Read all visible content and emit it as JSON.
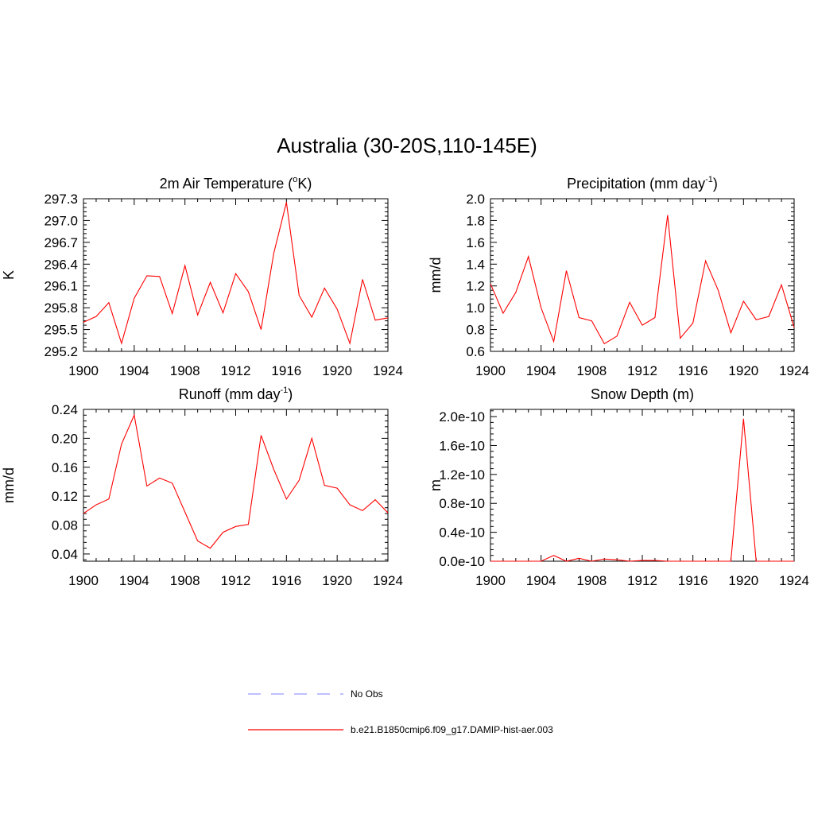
{
  "title": "Australia (30-20S,110-145E)",
  "legend": [
    {
      "label": "No Obs",
      "color": "#9999ff",
      "style": "dashed"
    },
    {
      "label": "b.e21.B1850cmip6.f09_g17.DAMIP-hist-aer.003",
      "color": "#ff0000",
      "style": "solid"
    }
  ],
  "chart_data": [
    {
      "type": "line",
      "title": "2m Air Temperature (",
      "title_sup": "o",
      "title_suffix": "K)",
      "ylabel": "K",
      "xlim": [
        1900,
        1924
      ],
      "ylim": [
        295.2,
        297.3
      ],
      "xticks": [
        "1900",
        "1904",
        "1908",
        "1912",
        "1916",
        "1920",
        "1924"
      ],
      "yticks": [
        "295.2",
        "295.5",
        "295.8",
        "296.1",
        "296.4",
        "296.7",
        "297.0",
        "297.3"
      ],
      "color": "#ff0000",
      "x": [
        1900,
        1901,
        1902,
        1903,
        1904,
        1905,
        1906,
        1907,
        1908,
        1909,
        1910,
        1911,
        1912,
        1913,
        1914,
        1915,
        1916,
        1917,
        1918,
        1919,
        1920,
        1921,
        1922,
        1923,
        1924
      ],
      "y": [
        295.6,
        295.68,
        295.87,
        295.31,
        295.93,
        296.24,
        296.23,
        295.72,
        296.38,
        295.7,
        296.15,
        295.73,
        296.27,
        296.02,
        295.5,
        296.55,
        297.25,
        295.97,
        295.67,
        296.07,
        295.78,
        295.31,
        296.19,
        295.63,
        295.66
      ]
    },
    {
      "type": "line",
      "title": "Precipitation (mm day",
      "title_sup": "-1",
      "title_suffix": ")",
      "ylabel": "mm/d",
      "xlim": [
        1900,
        1924
      ],
      "ylim": [
        0.6,
        2.0
      ],
      "xticks": [
        "1900",
        "1904",
        "1908",
        "1912",
        "1916",
        "1920",
        "1924"
      ],
      "yticks": [
        "0.6",
        "0.8",
        "1.0",
        "1.2",
        "1.4",
        "1.6",
        "1.8",
        "2.0"
      ],
      "color": "#ff0000",
      "x": [
        1900,
        1901,
        1902,
        1903,
        1904,
        1905,
        1906,
        1907,
        1908,
        1909,
        1910,
        1911,
        1912,
        1913,
        1914,
        1915,
        1916,
        1917,
        1918,
        1919,
        1920,
        1921,
        1922,
        1923,
        1924
      ],
      "y": [
        1.22,
        0.95,
        1.14,
        1.47,
        1.0,
        0.69,
        1.34,
        0.91,
        0.88,
        0.67,
        0.74,
        1.05,
        0.84,
        0.91,
        1.85,
        0.72,
        0.86,
        1.43,
        1.16,
        0.77,
        1.06,
        0.89,
        0.92,
        1.21,
        0.82
      ]
    },
    {
      "type": "line",
      "title": "Runoff (mm day",
      "title_sup": "-1",
      "title_suffix": ")",
      "ylabel": "mm/d",
      "xlim": [
        1900,
        1924
      ],
      "ylim": [
        0.03,
        0.24
      ],
      "xticks": [
        "1900",
        "1904",
        "1908",
        "1912",
        "1916",
        "1920",
        "1924"
      ],
      "yticks": [
        "0.04",
        "0.08",
        "0.12",
        "0.16",
        "0.20",
        "0.24"
      ],
      "color": "#ff0000",
      "x": [
        1900,
        1901,
        1902,
        1903,
        1904,
        1905,
        1906,
        1907,
        1908,
        1909,
        1910,
        1911,
        1912,
        1913,
        1914,
        1915,
        1916,
        1917,
        1918,
        1919,
        1920,
        1921,
        1922,
        1923,
        1924
      ],
      "y": [
        0.096,
        0.108,
        0.116,
        0.192,
        0.232,
        0.134,
        0.145,
        0.138,
        0.098,
        0.058,
        0.048,
        0.07,
        0.078,
        0.081,
        0.204,
        0.157,
        0.116,
        0.142,
        0.2,
        0.135,
        0.131,
        0.108,
        0.1,
        0.115,
        0.097
      ]
    },
    {
      "type": "line",
      "title": "Snow Depth (m)",
      "title_sup": "",
      "title_suffix": "",
      "ylabel": "m",
      "xlim": [
        1900,
        1924
      ],
      "ylim": [
        0,
        2.1e-10
      ],
      "xticks": [
        "1900",
        "1904",
        "1908",
        "1912",
        "1916",
        "1920",
        "1924"
      ],
      "yticks": [
        "0.0e-10",
        "0.4e-10",
        "0.8e-10",
        "1.2e-10",
        "1.6e-10",
        "2.0e-10"
      ],
      "color": "#ff0000",
      "x": [
        1900,
        1901,
        1902,
        1903,
        1904,
        1905,
        1906,
        1907,
        1908,
        1909,
        1910,
        1911,
        1912,
        1913,
        1914,
        1915,
        1916,
        1917,
        1918,
        1919,
        1920,
        1921,
        1922,
        1923,
        1924
      ],
      "y": [
        0,
        0,
        0,
        0,
        0,
        8e-12,
        0,
        4e-12,
        0,
        3e-12,
        2e-12,
        0,
        1e-12,
        1e-12,
        0,
        0,
        0,
        0,
        0,
        0,
        1.97e-10,
        0,
        0,
        0,
        0
      ]
    }
  ]
}
